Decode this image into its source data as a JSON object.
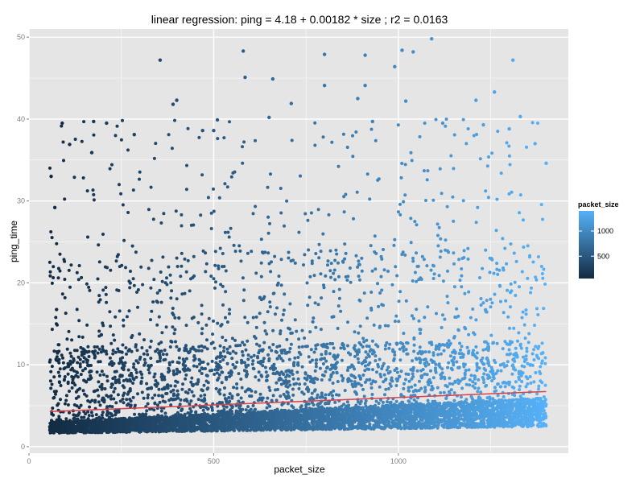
{
  "chart_data": {
    "type": "scatter",
    "title": "linear regression: ping = 4.18 + 0.00182 * size ; r2 = 0.0163",
    "xlabel": "packet_size",
    "ylabel": "ping_time",
    "xlim": [
      0,
      1460
    ],
    "ylim": [
      -0.8,
      51
    ],
    "x_ticks": [
      0,
      500,
      1000
    ],
    "y_ticks": [
      0,
      10,
      20,
      30,
      40,
      50
    ],
    "grid": true,
    "background": "#e5e5e5",
    "grid_color": "#ffffff",
    "regression": {
      "intercept": 4.18,
      "slope": 0.00182,
      "x_range": [
        56,
        1400
      ],
      "color": "#d9414b"
    },
    "color_scale": {
      "variable": "packet_size",
      "low_color": "#132b43",
      "high_color": "#56b1f7",
      "range": [
        56,
        1400
      ],
      "breaks": [
        500,
        1000
      ]
    },
    "legend": {
      "title": "packet_size",
      "placement": "right",
      "labels": [
        "1000",
        "500"
      ]
    },
    "points_highlighted": [
      {
        "x": 60,
        "y": 33.0
      },
      {
        "x": 70,
        "y": 29.2
      },
      {
        "x": 90,
        "y": 39.5
      },
      {
        "x": 110,
        "y": 36.9
      },
      {
        "x": 175,
        "y": 39.7
      },
      {
        "x": 170,
        "y": 35.9
      },
      {
        "x": 210,
        "y": 39.5
      },
      {
        "x": 285,
        "y": 38.1
      },
      {
        "x": 355,
        "y": 47.2
      },
      {
        "x": 390,
        "y": 41.8
      },
      {
        "x": 400,
        "y": 42.3
      },
      {
        "x": 470,
        "y": 38.6
      },
      {
        "x": 500,
        "y": 38.6
      },
      {
        "x": 510,
        "y": 39.9
      },
      {
        "x": 580,
        "y": 48.3
      },
      {
        "x": 585,
        "y": 45.1
      },
      {
        "x": 660,
        "y": 44.9
      },
      {
        "x": 650,
        "y": 40.2
      },
      {
        "x": 710,
        "y": 41.9
      },
      {
        "x": 800,
        "y": 47.9
      },
      {
        "x": 800,
        "y": 44.1
      },
      {
        "x": 890,
        "y": 42.5
      },
      {
        "x": 910,
        "y": 47.8
      },
      {
        "x": 910,
        "y": 44.1
      },
      {
        "x": 930,
        "y": 39.7
      },
      {
        "x": 990,
        "y": 46.4
      },
      {
        "x": 1010,
        "y": 48.4
      },
      {
        "x": 1020,
        "y": 42.2
      },
      {
        "x": 1040,
        "y": 48.2
      },
      {
        "x": 1090,
        "y": 49.8
      },
      {
        "x": 1120,
        "y": 39.5
      },
      {
        "x": 1210,
        "y": 42.3
      },
      {
        "x": 1230,
        "y": 39.3
      },
      {
        "x": 1260,
        "y": 43.3
      },
      {
        "x": 1300,
        "y": 38.8
      },
      {
        "x": 1310,
        "y": 47.2
      },
      {
        "x": 1330,
        "y": 40.3
      },
      {
        "x": 1370,
        "y": 37.0
      },
      {
        "x": 1400,
        "y": 34.6
      }
    ],
    "point_density": {
      "n_points": 7500,
      "x_range": [
        56,
        1400
      ],
      "y_floor": 1.6,
      "y_max": 50,
      "description_of_distribution": "dense band from ~1.6 to ~5 rising with packet_size, sparse tail to 50"
    }
  }
}
